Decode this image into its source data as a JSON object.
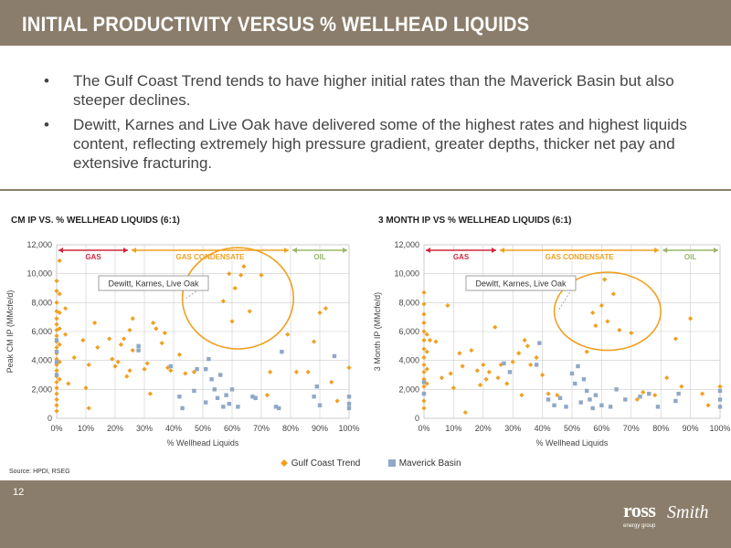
{
  "slide": {
    "title": "INITIAL PRODUCTIVITY  VERSUS  % WELLHEAD LIQUIDS",
    "bullets": [
      "The Gulf Coast Trend tends to have higher initial rates than the Maverick Basin but also steeper declines.",
      "Dewitt, Karnes and Live Oak have delivered some of the highest rates and highest liquids content, reflecting extremely high pressure gradient, greater depths, thicker net pay and extensive fracturing."
    ],
    "bullet_symbol": "•",
    "source": "Source: HPDI, RSEG",
    "page_number": "12",
    "logo": {
      "word1": "ross",
      "word2": "Smith",
      "tagline": "energy group"
    },
    "colors": {
      "bar": "#8b7d6b",
      "gulf": "#f0a020",
      "maverick": "#8fa8c8",
      "ellipse": "#f0a020",
      "gas": "#d0283c",
      "condensate": "#f0a020",
      "oil": "#9bb56a"
    }
  },
  "chart_data": [
    {
      "type": "scatter",
      "title": "CM IP VS. % WELLHEAD LIQUIDS (6:1)",
      "xlabel": "% Wellhead Liquids",
      "ylabel": "Peak CM IP (MMcfe/d)",
      "xlim": [
        0,
        100
      ],
      "ylim": [
        0,
        12000
      ],
      "x_ticks": [
        "0%",
        "10%",
        "20%",
        "30%",
        "40%",
        "50%",
        "60%",
        "70%",
        "80%",
        "90%",
        "100%"
      ],
      "y_ticks": [
        "0",
        "2,000",
        "4,000",
        "6,000",
        "8,000",
        "10,000",
        "12,000"
      ],
      "grid": true,
      "zones": [
        {
          "label": "GAS",
          "from": 0,
          "to": 25,
          "color": "#d0283c"
        },
        {
          "label": "GAS CONDENSATE",
          "from": 25,
          "to": 80,
          "color": "#f0a020"
        },
        {
          "label": "OIL",
          "from": 80,
          "to": 100,
          "color": "#9bb56a"
        }
      ],
      "annotation": {
        "text": "Dewitt, Karnes, Live Oak",
        "ellipse": {
          "cx": 62,
          "cy": 8300,
          "rx": 19,
          "ry": 3500
        }
      },
      "series": [
        {
          "name": "Gulf Coast Trend",
          "marker": "diamond",
          "points": [
            [
              0,
              9500
            ],
            [
              0,
              8800
            ],
            [
              0,
              8000
            ],
            [
              0,
              7400
            ],
            [
              0,
              6900
            ],
            [
              0,
              6500
            ],
            [
              0,
              6100
            ],
            [
              0,
              5700
            ],
            [
              0,
              5300
            ],
            [
              0,
              4900
            ],
            [
              0,
              4500
            ],
            [
              0,
              4100
            ],
            [
              0,
              3700
            ],
            [
              0,
              3300
            ],
            [
              0,
              2900
            ],
            [
              0,
              2500
            ],
            [
              0,
              2100
            ],
            [
              0,
              1700
            ],
            [
              0,
              1300
            ],
            [
              0,
              900
            ],
            [
              0,
              500
            ],
            [
              1,
              10900
            ],
            [
              1,
              8600
            ],
            [
              1,
              7300
            ],
            [
              1,
              6200
            ],
            [
              1,
              5100
            ],
            [
              1,
              3900
            ],
            [
              1,
              2700
            ],
            [
              3,
              7600
            ],
            [
              3,
              5800
            ],
            [
              4,
              2400
            ],
            [
              6,
              4200
            ],
            [
              9,
              5400
            ],
            [
              10,
              2100
            ],
            [
              11,
              700
            ],
            [
              11,
              3700
            ],
            [
              13,
              6600
            ],
            [
              14,
              4900
            ],
            [
              18,
              5500
            ],
            [
              19,
              4100
            ],
            [
              20,
              3600
            ],
            [
              21,
              3900
            ],
            [
              22,
              5100
            ],
            [
              23,
              5500
            ],
            [
              24,
              2900
            ],
            [
              25,
              6100
            ],
            [
              25,
              3300
            ],
            [
              26,
              6900
            ],
            [
              26,
              4700
            ],
            [
              30,
              3400
            ],
            [
              31,
              3800
            ],
            [
              32,
              1700
            ],
            [
              33,
              6600
            ],
            [
              34,
              6200
            ],
            [
              36,
              5200
            ],
            [
              37,
              5900
            ],
            [
              38,
              3500
            ],
            [
              39,
              3300
            ],
            [
              42,
              4400
            ],
            [
              44,
              3100
            ],
            [
              47,
              3200
            ],
            [
              57,
              8100
            ],
            [
              59,
              10000
            ],
            [
              60,
              6700
            ],
            [
              61,
              9000
            ],
            [
              63,
              9900
            ],
            [
              64,
              10500
            ],
            [
              66,
              7400
            ],
            [
              68,
              1400
            ],
            [
              70,
              9900
            ],
            [
              72,
              1600
            ],
            [
              73,
              3200
            ],
            [
              79,
              5800
            ],
            [
              82,
              3200
            ],
            [
              86,
              3200
            ],
            [
              88,
              5300
            ],
            [
              90,
              7300
            ],
            [
              92,
              7600
            ],
            [
              94,
              2500
            ],
            [
              96,
              1200
            ],
            [
              100,
              3500
            ]
          ]
        },
        {
          "name": "Maverick Basin",
          "marker": "square",
          "points": [
            [
              0,
              5400
            ],
            [
              0,
              4600
            ],
            [
              0,
              3900
            ],
            [
              0,
              3000
            ],
            [
              28,
              5000
            ],
            [
              28,
              4700
            ],
            [
              39,
              3600
            ],
            [
              42,
              1500
            ],
            [
              43,
              700
            ],
            [
              47,
              1900
            ],
            [
              48,
              3400
            ],
            [
              51,
              1100
            ],
            [
              51,
              3400
            ],
            [
              52,
              4100
            ],
            [
              53,
              2700
            ],
            [
              54,
              2000
            ],
            [
              55,
              1400
            ],
            [
              56,
              3000
            ],
            [
              57,
              800
            ],
            [
              58,
              1600
            ],
            [
              59,
              1000
            ],
            [
              60,
              2000
            ],
            [
              62,
              800
            ],
            [
              67,
              1500
            ],
            [
              68,
              1400
            ],
            [
              75,
              800
            ],
            [
              76,
              700
            ],
            [
              77,
              4600
            ],
            [
              88,
              1500
            ],
            [
              89,
              2200
            ],
            [
              90,
              900
            ],
            [
              95,
              4300
            ],
            [
              100,
              1500
            ],
            [
              100,
              1000
            ],
            [
              100,
              700
            ]
          ]
        }
      ]
    },
    {
      "type": "scatter",
      "title": "3 MONTH IP VS % WELLHEAD LIQUIDS (6:1)",
      "xlabel": "% Wellhead Liquids",
      "ylabel": "3 Month IP (MMcfe/d)",
      "xlim": [
        0,
        100
      ],
      "ylim": [
        0,
        12000
      ],
      "x_ticks": [
        "0%",
        "10%",
        "20%",
        "30%",
        "40%",
        "50%",
        "60%",
        "70%",
        "80%",
        "90%",
        "100%"
      ],
      "y_ticks": [
        "0",
        "2,000",
        "4,000",
        "6,000",
        "8,000",
        "10,000",
        "12,000"
      ],
      "grid": true,
      "zones": [
        {
          "label": "GAS",
          "from": 0,
          "to": 25,
          "color": "#d0283c"
        },
        {
          "label": "GAS CONDENSATE",
          "from": 25,
          "to": 80,
          "color": "#f0a020"
        },
        {
          "label": "OIL",
          "from": 80,
          "to": 100,
          "color": "#9bb56a"
        }
      ],
      "annotation": {
        "text": "Dewitt, Karnes, Live Oak",
        "ellipse": {
          "cx": 62,
          "cy": 7400,
          "rx": 18,
          "ry": 2700
        }
      },
      "series": [
        {
          "name": "Gulf Coast Trend",
          "marker": "diamond",
          "points": [
            [
              0,
              8700
            ],
            [
              0,
              7900
            ],
            [
              0,
              7200
            ],
            [
              0,
              6600
            ],
            [
              0,
              6000
            ],
            [
              0,
              5400
            ],
            [
              0,
              4800
            ],
            [
              0,
              4200
            ],
            [
              0,
              3700
            ],
            [
              0,
              3200
            ],
            [
              0,
              2700
            ],
            [
              0,
              2200
            ],
            [
              0,
              1700
            ],
            [
              0,
              1200
            ],
            [
              0,
              700
            ],
            [
              1,
              5800
            ],
            [
              1,
              4600
            ],
            [
              1,
              3400
            ],
            [
              1,
              2400
            ],
            [
              2,
              5400
            ],
            [
              4,
              5300
            ],
            [
              6,
              2800
            ],
            [
              8,
              7800
            ],
            [
              9,
              3100
            ],
            [
              10,
              2100
            ],
            [
              12,
              4500
            ],
            [
              13,
              3600
            ],
            [
              14,
              400
            ],
            [
              16,
              4700
            ],
            [
              18,
              3300
            ],
            [
              19,
              2300
            ],
            [
              20,
              3700
            ],
            [
              21,
              2700
            ],
            [
              22,
              3200
            ],
            [
              24,
              6300
            ],
            [
              25,
              2800
            ],
            [
              26,
              3700
            ],
            [
              28,
              2400
            ],
            [
              30,
              3900
            ],
            [
              32,
              4500
            ],
            [
              33,
              1600
            ],
            [
              34,
              5400
            ],
            [
              35,
              5000
            ],
            [
              36,
              3700
            ],
            [
              38,
              4200
            ],
            [
              40,
              3000
            ],
            [
              42,
              1700
            ],
            [
              45,
              1600
            ],
            [
              55,
              4600
            ],
            [
              57,
              7300
            ],
            [
              58,
              6400
            ],
            [
              60,
              7800
            ],
            [
              61,
              9600
            ],
            [
              62,
              6700
            ],
            [
              64,
              8600
            ],
            [
              66,
              6100
            ],
            [
              70,
              5900
            ],
            [
              72,
              1300
            ],
            [
              74,
              1800
            ],
            [
              78,
              1600
            ],
            [
              82,
              2800
            ],
            [
              85,
              5500
            ],
            [
              87,
              2200
            ],
            [
              90,
              6900
            ],
            [
              94,
              1700
            ],
            [
              96,
              900
            ],
            [
              100,
              2200
            ]
          ]
        },
        {
          "name": "Maverick Basin",
          "marker": "square",
          "points": [
            [
              0,
              2500
            ],
            [
              0,
              1700
            ],
            [
              27,
              3800
            ],
            [
              29,
              3200
            ],
            [
              38,
              3700
            ],
            [
              39,
              5200
            ],
            [
              42,
              1300
            ],
            [
              44,
              900
            ],
            [
              46,
              1400
            ],
            [
              48,
              800
            ],
            [
              50,
              3100
            ],
            [
              51,
              2400
            ],
            [
              52,
              3600
            ],
            [
              53,
              1100
            ],
            [
              54,
              2700
            ],
            [
              55,
              1900
            ],
            [
              56,
              1300
            ],
            [
              57,
              700
            ],
            [
              58,
              1600
            ],
            [
              60,
              900
            ],
            [
              63,
              800
            ],
            [
              65,
              2000
            ],
            [
              68,
              1300
            ],
            [
              73,
              1500
            ],
            [
              76,
              1700
            ],
            [
              79,
              800
            ],
            [
              85,
              1200
            ],
            [
              86,
              1700
            ],
            [
              100,
              1900
            ],
            [
              100,
              1300
            ],
            [
              100,
              800
            ]
          ]
        }
      ]
    }
  ],
  "legend": [
    {
      "label": "Gulf Coast Trend",
      "marker": "diamond"
    },
    {
      "label": "Maverick Basin",
      "marker": "square"
    }
  ]
}
